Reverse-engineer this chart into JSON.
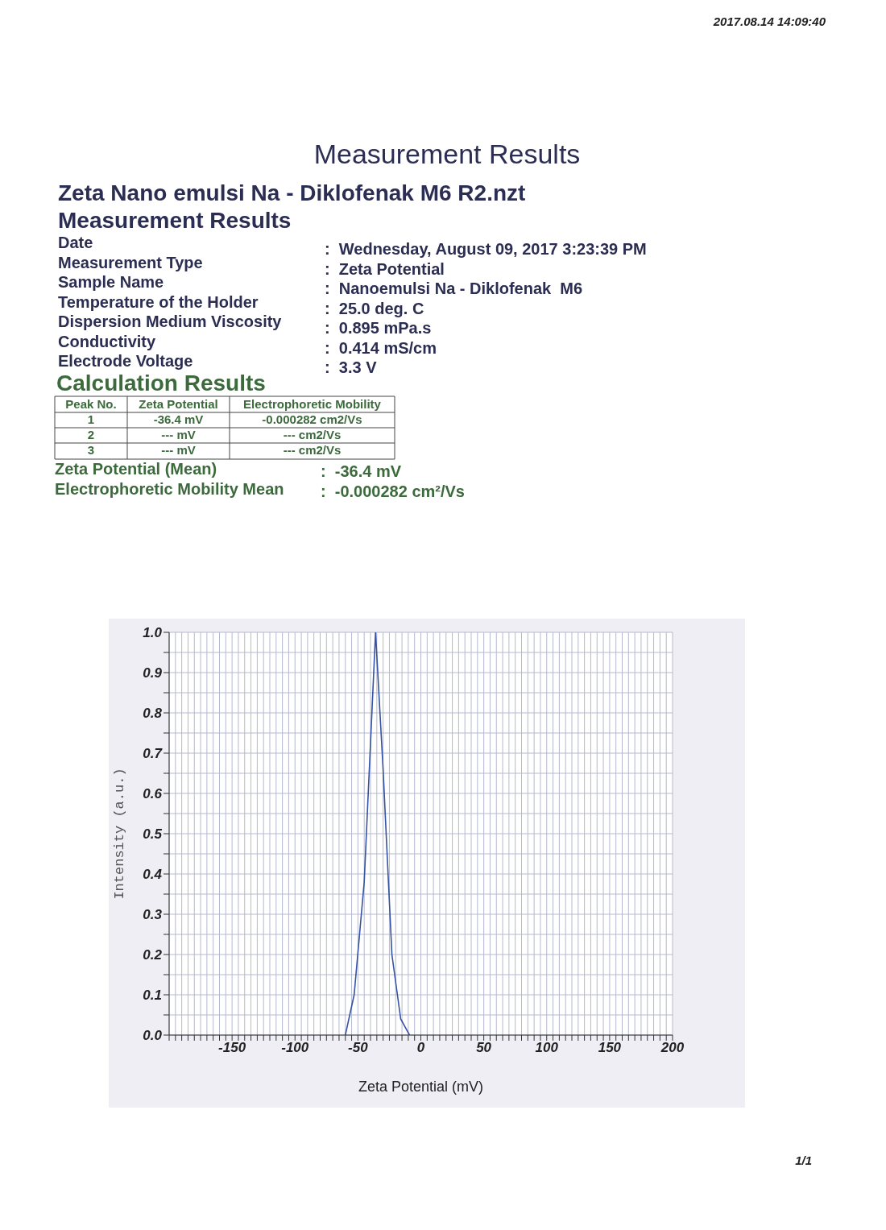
{
  "chart_data": {
    "type": "line",
    "title": "Measurement Results",
    "subtitle": "Zeta Nano emulsi Na - Diklofenak M6 R2.nzt",
    "xlabel": "Zeta Potential (mV)",
    "ylabel": "Intensity (a.u.)",
    "x": [
      -60,
      -53,
      -45,
      -36,
      -30,
      -23,
      -16,
      -9
    ],
    "series": [
      {
        "color": "#3552a5",
        "values": [
          0,
          0.1,
          0.38,
          1.0,
          0.66,
          0.2,
          0.04,
          0
        ]
      }
    ],
    "xlim": [
      -200,
      200
    ],
    "xticks": [
      {
        "value": -200,
        "label": null
      },
      {
        "value": -195,
        "label": null
      },
      {
        "value": -190,
        "label": null
      },
      {
        "value": -185,
        "label": null
      },
      {
        "value": -180,
        "label": null
      },
      {
        "value": -175,
        "label": null
      },
      {
        "value": -170,
        "label": null
      },
      {
        "value": -165,
        "label": null
      },
      {
        "value": -160,
        "label": null
      },
      {
        "value": -155,
        "label": null
      },
      -150,
      {
        "value": -145,
        "label": null
      },
      {
        "value": -140,
        "label": null
      },
      {
        "value": -135,
        "label": null
      },
      {
        "value": -130,
        "label": null
      },
      {
        "value": -125,
        "label": null
      },
      {
        "value": -120,
        "label": null
      },
      {
        "value": -115,
        "label": null
      },
      {
        "value": -110,
        "label": null
      },
      {
        "value": -105,
        "label": null
      },
      -100,
      {
        "value": -95,
        "label": null
      },
      {
        "value": -90,
        "label": null
      },
      {
        "value": -85,
        "label": null
      },
      {
        "value": -80,
        "label": null
      },
      {
        "value": -75,
        "label": null
      },
      {
        "value": -70,
        "label": null
      },
      {
        "value": -65,
        "label": null
      },
      {
        "value": -60,
        "label": null
      },
      {
        "value": -55,
        "label": null
      },
      -50,
      {
        "value": -45,
        "label": null
      },
      {
        "value": -40,
        "label": null
      },
      {
        "value": -35,
        "label": null
      },
      {
        "value": -30,
        "label": null
      },
      {
        "value": -25,
        "label": null
      },
      {
        "value": -20,
        "label": null
      },
      {
        "value": -15,
        "label": null
      },
      {
        "value": -10,
        "label": null
      },
      {
        "value": -5,
        "label": null
      },
      0,
      {
        "value": 5,
        "label": null
      },
      {
        "value": 10,
        "label": null
      },
      {
        "value": 15,
        "label": null
      },
      {
        "value": 20,
        "label": null
      },
      {
        "value": 25,
        "label": null
      },
      {
        "value": 30,
        "label": null
      },
      {
        "value": 35,
        "label": null
      },
      {
        "value": 40,
        "label": null
      },
      {
        "value": 45,
        "label": null
      },
      50,
      {
        "value": 55,
        "label": null
      },
      {
        "value": 60,
        "label": null
      },
      {
        "value": 65,
        "label": null
      },
      {
        "value": 70,
        "label": null
      },
      {
        "value": 75,
        "label": null
      },
      {
        "value": 80,
        "label": null
      },
      {
        "value": 85,
        "label": null
      },
      {
        "value": 90,
        "label": null
      },
      {
        "value": 95,
        "label": null
      },
      100,
      {
        "value": 105,
        "label": null
      },
      {
        "value": 110,
        "label": null
      },
      {
        "value": 115,
        "label": null
      },
      {
        "value": 120,
        "label": null
      },
      {
        "value": 125,
        "label": null
      },
      {
        "value": 130,
        "label": null
      },
      {
        "value": 135,
        "label": null
      },
      {
        "value": 140,
        "label": null
      },
      {
        "value": 145,
        "label": null
      },
      150,
      {
        "value": 155,
        "label": null
      },
      {
        "value": 160,
        "label": null
      },
      {
        "value": 165,
        "label": null
      },
      {
        "value": 170,
        "label": null
      },
      {
        "value": 175,
        "label": null
      },
      {
        "value": 180,
        "label": null
      },
      {
        "value": 185,
        "label": null
      },
      {
        "value": 190,
        "label": null
      },
      {
        "value": 195,
        "label": null
      },
      200
    ],
    "ylim": [
      0,
      1
    ],
    "yticks": [
      {
        "value": 0,
        "label": "0.0"
      },
      {
        "value": 0.05,
        "label": null
      },
      {
        "value": 0.1,
        "label": "0.1"
      },
      {
        "value": 0.15,
        "label": null
      },
      {
        "value": 0.2,
        "label": "0.2"
      },
      {
        "value": 0.25,
        "label": null
      },
      {
        "value": 0.3,
        "label": "0.3"
      },
      {
        "value": 0.35,
        "label": null
      },
      {
        "value": 0.4,
        "label": "0.4"
      },
      {
        "value": 0.45,
        "label": null
      },
      {
        "value": 0.5,
        "label": "0.5"
      },
      {
        "value": 0.55,
        "label": null
      },
      {
        "value": 0.6,
        "label": "0.6"
      },
      {
        "value": 0.65,
        "label": null
      },
      {
        "value": 0.7,
        "label": "0.7"
      },
      {
        "value": 0.75,
        "label": null
      },
      {
        "value": 0.8,
        "label": "0.8"
      },
      {
        "value": 0.85,
        "label": null
      },
      {
        "value": 0.9,
        "label": "0.9"
      },
      {
        "value": 0.95,
        "label": null
      },
      {
        "value": 1.0,
        "label": "1.0"
      }
    ],
    "grid": true,
    "annotations": [
      "2017.08.14 14:09:40",
      "Measurement Results",
      "Date",
      ":  Wednesday, August 09, 2017 3:23:39 PM",
      "Measurement Type",
      ":  Zeta Potential",
      "Sample Name",
      ":  Nanoemulsi Na - Diklofenak  M6",
      "Temperature of the Holder",
      ":  25.0 deg. C",
      "Dispersion Medium Viscosity",
      ":  0.895 mPa.s",
      "Conductivity",
      ":  0.414 mS/cm",
      "Electrode Voltage",
      ":  3.3 V",
      "Calculation Results",
      "Peak No.",
      "Zeta Potential",
      "Electrophoretic Mobility",
      "1",
      "-36.4 mV",
      "-0.000282 cm2/Vs",
      "2",
      "--- mV",
      "--- cm2/Vs",
      "3",
      "--- mV",
      "--- cm2/Vs",
      "Zeta Potential (Mean)",
      ":  -36.4 mV",
      "Electrophoretic Mobility Mean",
      ":  -0.000282 cm²/Vs",
      "1/1"
    ]
  }
}
